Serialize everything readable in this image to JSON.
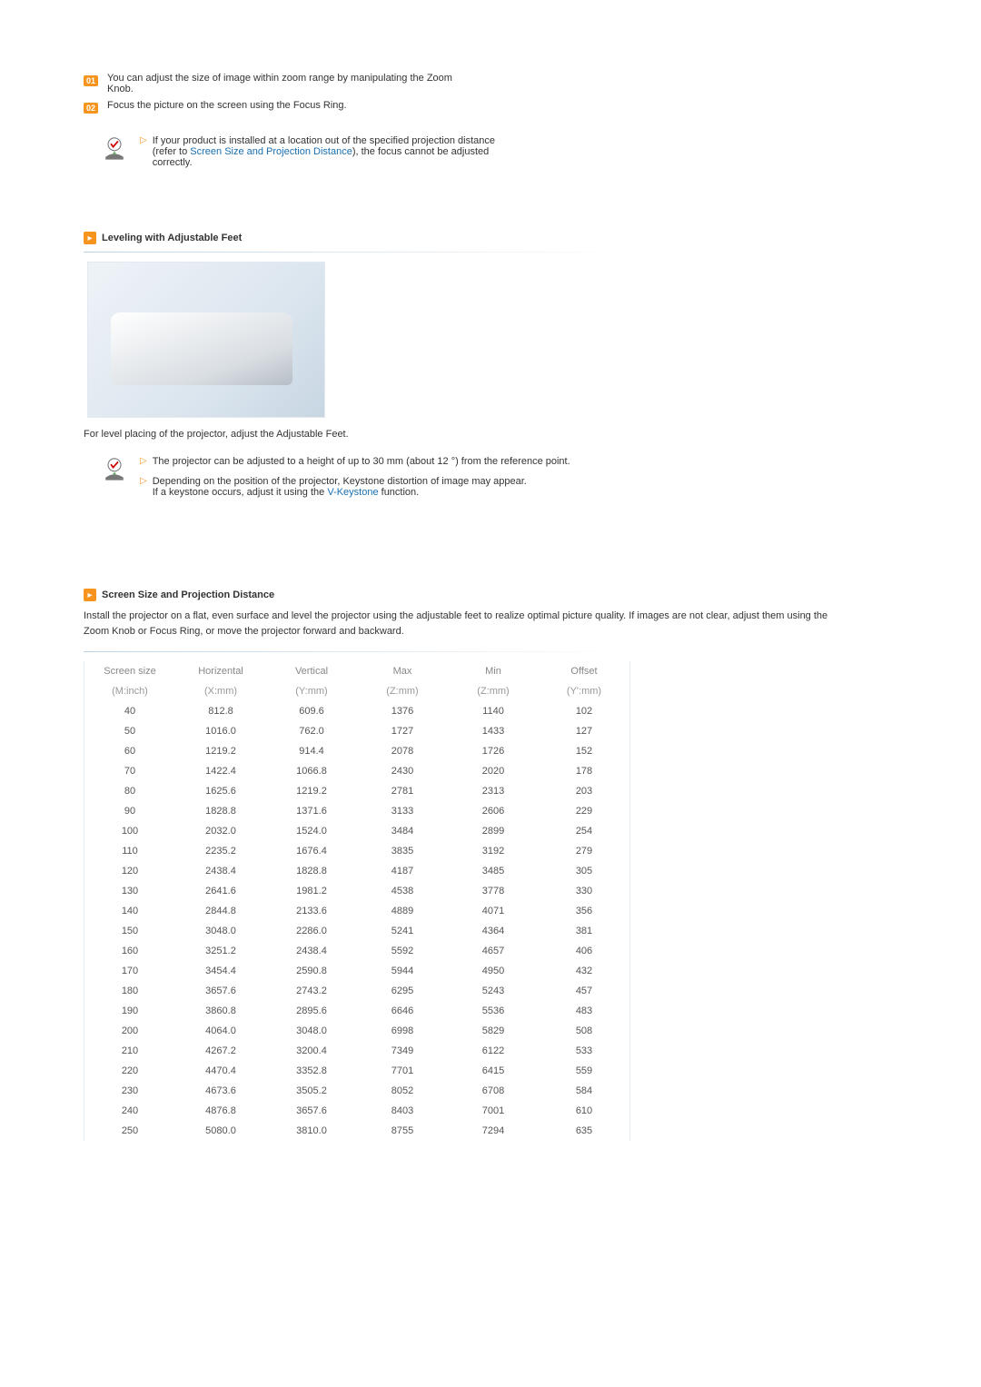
{
  "intro": {
    "items": [
      {
        "badge": "01",
        "text": "You can adjust the size of image within zoom range by manipulating the Zoom Knob."
      },
      {
        "badge": "02",
        "text": "Focus the picture on the screen using the Focus Ring."
      }
    ],
    "note_before": "If your product is installed at a location out of the specified projection distance (refer to ",
    "note_link": "Screen Size and Projection Distance",
    "note_after": "), the focus cannot be adjusted correctly."
  },
  "leveling": {
    "title": "Leveling with Adjustable Feet",
    "caption": "For level placing of the projector, adjust the Adjustable Feet.",
    "bullets": [
      {
        "text": "The projector can be adjusted to a height of up to 30 mm (about 12 °) from the reference point."
      },
      {
        "text_before": "Depending on the position of the projector, Keystone distortion of image may appear.",
        "text_line2_before": "If a keystone occurs, adjust it using the ",
        "link": "V-Keystone",
        "text_line2_after": " function."
      }
    ]
  },
  "distance": {
    "title": "Screen Size and Projection Distance",
    "desc": "Install the projector on a flat, even surface and level the projector using the adjustable feet to realize optimal picture quality. If images are not clear, adjust them using the Zoom Knob or Focus Ring, or move the projector forward and backward.",
    "columns_top": [
      "Screen size",
      "Horizental",
      "Vertical",
      "Max",
      "Min",
      "Offset"
    ],
    "columns_sub": [
      "(M:inch)",
      "(X:mm)",
      "(Y:mm)",
      "(Z:mm)",
      "(Z:mm)",
      "(Y':mm)"
    ],
    "rows": [
      [
        "40",
        "812.8",
        "609.6",
        "1376",
        "1140",
        "102"
      ],
      [
        "50",
        "1016.0",
        "762.0",
        "1727",
        "1433",
        "127"
      ],
      [
        "60",
        "1219.2",
        "914.4",
        "2078",
        "1726",
        "152"
      ],
      [
        "70",
        "1422.4",
        "1066.8",
        "2430",
        "2020",
        "178"
      ],
      [
        "80",
        "1625.6",
        "1219.2",
        "2781",
        "2313",
        "203"
      ],
      [
        "90",
        "1828.8",
        "1371.6",
        "3133",
        "2606",
        "229"
      ],
      [
        "100",
        "2032.0",
        "1524.0",
        "3484",
        "2899",
        "254"
      ],
      [
        "110",
        "2235.2",
        "1676.4",
        "3835",
        "3192",
        "279"
      ],
      [
        "120",
        "2438.4",
        "1828.8",
        "4187",
        "3485",
        "305"
      ],
      [
        "130",
        "2641.6",
        "1981.2",
        "4538",
        "3778",
        "330"
      ],
      [
        "140",
        "2844.8",
        "2133.6",
        "4889",
        "4071",
        "356"
      ],
      [
        "150",
        "3048.0",
        "2286.0",
        "5241",
        "4364",
        "381"
      ],
      [
        "160",
        "3251.2",
        "2438.4",
        "5592",
        "4657",
        "406"
      ],
      [
        "170",
        "3454.4",
        "2590.8",
        "5944",
        "4950",
        "432"
      ],
      [
        "180",
        "3657.6",
        "2743.2",
        "6295",
        "5243",
        "457"
      ],
      [
        "190",
        "3860.8",
        "2895.6",
        "6646",
        "5536",
        "483"
      ],
      [
        "200",
        "4064.0",
        "3048.0",
        "6998",
        "5829",
        "508"
      ],
      [
        "210",
        "4267.2",
        "3200.4",
        "7349",
        "6122",
        "533"
      ],
      [
        "220",
        "4470.4",
        "3352.8",
        "7701",
        "6415",
        "559"
      ],
      [
        "230",
        "4673.6",
        "3505.2",
        "8052",
        "6708",
        "584"
      ],
      [
        "240",
        "4876.8",
        "3657.6",
        "8403",
        "7001",
        "610"
      ],
      [
        "250",
        "5080.0",
        "3810.0",
        "8755",
        "7294",
        "635"
      ]
    ]
  },
  "style": {
    "accent": "#f7941d",
    "link_color": "#1a6fb0",
    "table_border": "#e5eef5"
  }
}
